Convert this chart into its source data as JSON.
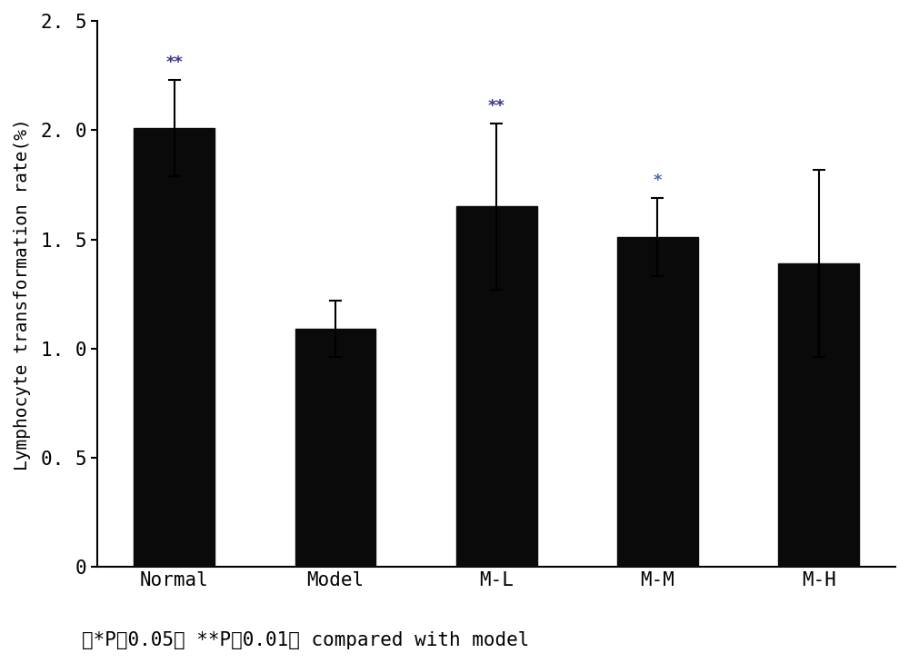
{
  "categories": [
    "Normal",
    "Model",
    "M-L",
    "M-M",
    "M-H"
  ],
  "values": [
    2.01,
    1.09,
    1.65,
    1.51,
    1.39
  ],
  "errors": [
    0.22,
    0.13,
    0.38,
    0.18,
    0.43
  ],
  "bar_color": "#0a0a0a",
  "error_color": "#000000",
  "significance": [
    "**",
    "",
    "**",
    "*",
    ""
  ],
  "sig_color_double": "#3a3a8a",
  "sig_color_single": "#4a6ab0",
  "ylabel": "Lymphocyte transformation rate(%)",
  "ylim": [
    0,
    2.5
  ],
  "yticks": [
    0,
    0.5,
    1.0,
    1.5,
    2.0,
    2.5
  ],
  "ytick_labels": [
    "0",
    "0. 5",
    "1. 0",
    "1. 5",
    "2. 0",
    "2. 5"
  ],
  "footnote": "注*P＜0.05， **P＜0.01， compared with model",
  "bar_width": 0.5,
  "background_color": "#ffffff"
}
